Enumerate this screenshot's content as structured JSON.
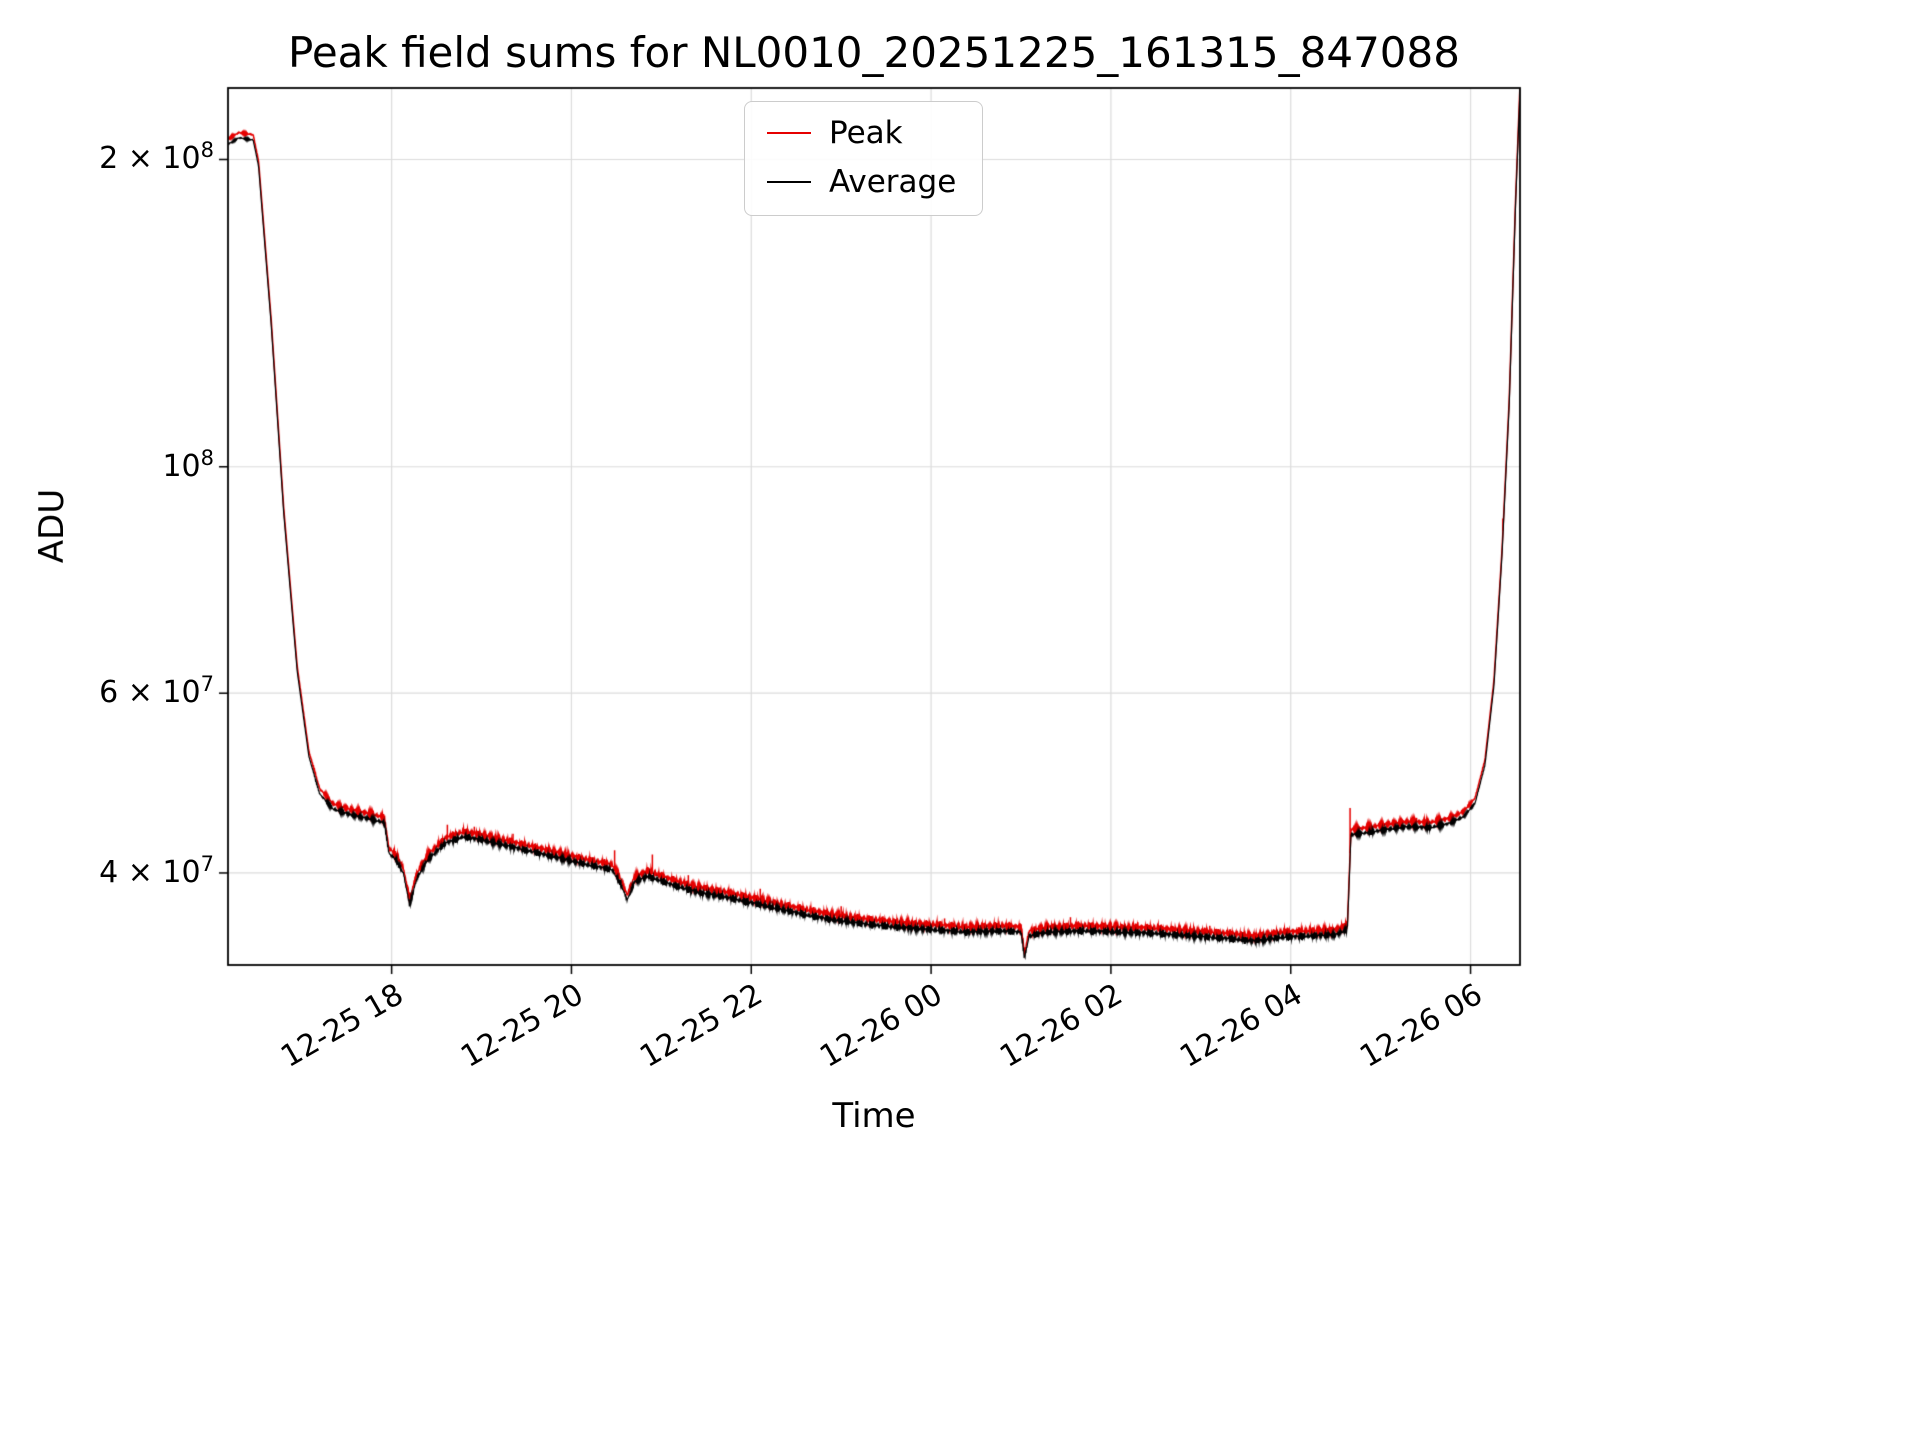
{
  "chart_data": {
    "type": "line",
    "title": "Peak field sums for NL0010_20251225_161315_847088",
    "xlabel": "Time",
    "ylabel": "ADU",
    "yscale": "log",
    "grid": true,
    "legend_position": "upper center",
    "ylim": [
      32500000.0,
      235000000.0
    ],
    "xlim_hours": [
      16.18,
      30.55
    ],
    "x_unit": "hours since 2025-12-25 00:00",
    "xticks": [
      {
        "hour": 18,
        "label": "12-25 18"
      },
      {
        "hour": 20,
        "label": "12-25 20"
      },
      {
        "hour": 22,
        "label": "12-25 22"
      },
      {
        "hour": 24,
        "label": "12-26 00"
      },
      {
        "hour": 26,
        "label": "12-26 02"
      },
      {
        "hour": 28,
        "label": "12-26 04"
      },
      {
        "hour": 30,
        "label": "12-26 06"
      }
    ],
    "yticks": [
      {
        "value": 40000000.0,
        "mantissa": "4 × 10",
        "exp": "7"
      },
      {
        "value": 60000000.0,
        "mantissa": "6 × 10",
        "exp": "7"
      },
      {
        "value": 100000000.0,
        "mantissa": "10",
        "exp": "8"
      },
      {
        "value": 200000000.0,
        "mantissa": "2 × 10",
        "exp": "8"
      }
    ],
    "series": [
      {
        "name": "Peak",
        "color": "#e60000",
        "offset_factor": 1.012,
        "noise_seed": 2.9,
        "line_width": 1.5
      },
      {
        "name": "Average",
        "color": "#000000",
        "offset_factor": 1.0,
        "noise_seed": 7.2,
        "line_width": 1.2
      }
    ],
    "keypoints_time_value_noise": [
      [
        16.18,
        207000000.0,
        0.003
      ],
      [
        16.3,
        210000000.0,
        0.003
      ],
      [
        16.46,
        209000000.0,
        0.003
      ],
      [
        16.52,
        197000000.0,
        0.001
      ],
      [
        16.66,
        138000000.0,
        0.001
      ],
      [
        16.8,
        90000000.0,
        0.001
      ],
      [
        16.95,
        63000000.0,
        0.001
      ],
      [
        17.08,
        52000000.0,
        0.002
      ],
      [
        17.2,
        47800000.0,
        0.004
      ],
      [
        17.35,
        46200000.0,
        0.006
      ],
      [
        17.55,
        45600000.0,
        0.007
      ],
      [
        17.75,
        45200000.0,
        0.007
      ],
      [
        17.92,
        44800000.0,
        0.007
      ],
      [
        17.97,
        41800000.0,
        0.007
      ],
      [
        18.05,
        41200000.0,
        0.008
      ],
      [
        18.13,
        40000000.0,
        0.008
      ],
      [
        18.2,
        37200000.0,
        0.008
      ],
      [
        18.28,
        39500000.0,
        0.008
      ],
      [
        18.4,
        41200000.0,
        0.008
      ],
      [
        18.6,
        42800000.0,
        0.009
      ],
      [
        18.8,
        43400000.0,
        0.009
      ],
      [
        19.0,
        43100000.0,
        0.009
      ],
      [
        19.25,
        42600000.0,
        0.009
      ],
      [
        19.55,
        42000000.0,
        0.009
      ],
      [
        19.85,
        41400000.0,
        0.009
      ],
      [
        20.15,
        40800000.0,
        0.009
      ],
      [
        20.45,
        40300000.0,
        0.009
      ],
      [
        20.55,
        39000000.0,
        0.008
      ],
      [
        20.62,
        37600000.0,
        0.006
      ],
      [
        20.7,
        39200000.0,
        0.008
      ],
      [
        20.85,
        39700000.0,
        0.01
      ],
      [
        21.1,
        39000000.0,
        0.01
      ],
      [
        21.4,
        38300000.0,
        0.01
      ],
      [
        21.7,
        37900000.0,
        0.01
      ],
      [
        22.0,
        37400000.0,
        0.01
      ],
      [
        22.3,
        36900000.0,
        0.01
      ],
      [
        22.6,
        36400000.0,
        0.01
      ],
      [
        22.9,
        36000000.0,
        0.01
      ],
      [
        23.2,
        35700000.0,
        0.01
      ],
      [
        23.6,
        35400000.0,
        0.01
      ],
      [
        24.0,
        35200000.0,
        0.01
      ],
      [
        24.4,
        35000000.0,
        0.01
      ],
      [
        24.8,
        35100000.0,
        0.01
      ],
      [
        25.0,
        35000000.0,
        0.009
      ],
      [
        25.04,
        33000000.0,
        0.005
      ],
      [
        25.09,
        34700000.0,
        0.009
      ],
      [
        25.3,
        35000000.0,
        0.01
      ],
      [
        25.7,
        35100000.0,
        0.01
      ],
      [
        26.1,
        35000000.0,
        0.01
      ],
      [
        26.5,
        34900000.0,
        0.01
      ],
      [
        26.9,
        34700000.0,
        0.01
      ],
      [
        27.3,
        34500000.0,
        0.01
      ],
      [
        27.6,
        34300000.0,
        0.01
      ],
      [
        27.9,
        34600000.0,
        0.01
      ],
      [
        28.2,
        34700000.0,
        0.01
      ],
      [
        28.5,
        34800000.0,
        0.009
      ],
      [
        28.63,
        35200000.0,
        0.008
      ],
      [
        28.67,
        43600000.0,
        0.006
      ],
      [
        28.85,
        43800000.0,
        0.007
      ],
      [
        29.05,
        44100000.0,
        0.007
      ],
      [
        29.3,
        44400000.0,
        0.007
      ],
      [
        29.55,
        44300000.0,
        0.007
      ],
      [
        29.75,
        44700000.0,
        0.006
      ],
      [
        29.92,
        45400000.0,
        0.005
      ],
      [
        30.05,
        46800000.0,
        0.004
      ],
      [
        30.16,
        51000000.0,
        0.002
      ],
      [
        30.26,
        61000000.0,
        0.002
      ],
      [
        30.35,
        82000000.0,
        0.002
      ],
      [
        30.43,
        115000000.0,
        0.001
      ],
      [
        30.5,
        180000000.0,
        0.001
      ],
      [
        30.57,
        260000000.0,
        0.001
      ]
    ],
    "peak_spikes": [
      [
        18.62,
        44600000.0
      ],
      [
        18.92,
        44400000.0
      ],
      [
        19.35,
        43700000.0
      ],
      [
        20.48,
        42100000.0
      ],
      [
        20.9,
        41700000.0
      ],
      [
        21.3,
        39800000.0
      ],
      [
        22.1,
        38600000.0
      ],
      [
        23.0,
        37100000.0
      ],
      [
        24.15,
        36100000.0
      ],
      [
        25.55,
        36200000.0
      ],
      [
        26.3,
        35800000.0
      ],
      [
        27.1,
        35500000.0
      ],
      [
        28.66,
        46300000.0
      ],
      [
        29.4,
        45300000.0
      ],
      [
        30.36,
        89000000.0
      ]
    ]
  }
}
